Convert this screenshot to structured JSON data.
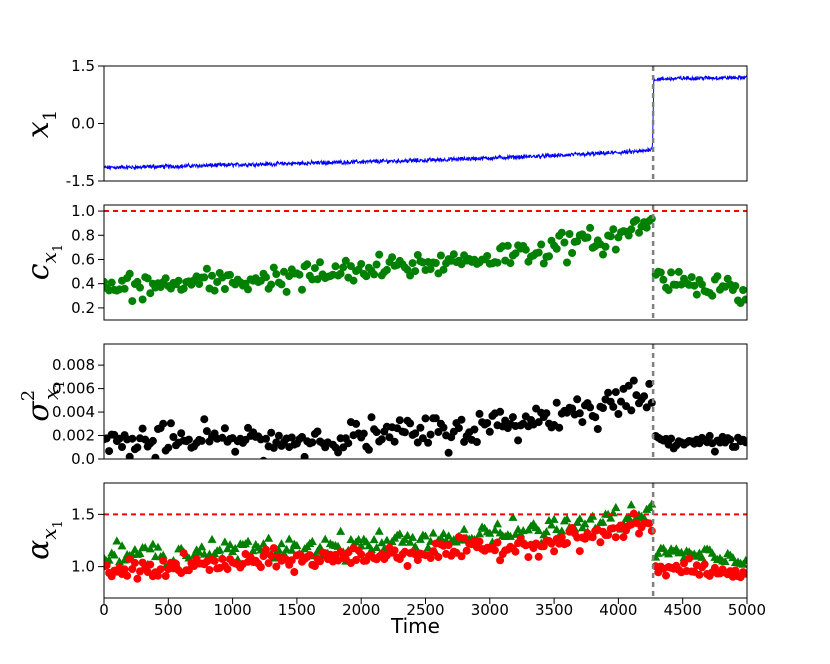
{
  "chart_data": [
    {
      "type": "line",
      "ylabel_main": "x",
      "ylabel_sub": "1",
      "ylabel_sup": "",
      "xlim": [
        0,
        5000
      ],
      "ylim": [
        -1.5,
        1.5
      ],
      "yticks": [
        "1.5",
        "0.0",
        "-1.5"
      ],
      "grid": false,
      "vline_x": 4270,
      "series": [
        {
          "color": "#0000ff",
          "x": [
            0,
            250,
            500,
            750,
            1000,
            1250,
            1500,
            1750,
            2000,
            2250,
            2500,
            2750,
            3000,
            3250,
            3500,
            3750,
            4000,
            4200,
            4265,
            4275,
            4500,
            4750,
            5000
          ],
          "y": [
            -1.15,
            -1.14,
            -1.12,
            -1.1,
            -1.08,
            -1.06,
            -1.04,
            -1.02,
            -1.0,
            -0.98,
            -0.96,
            -0.93,
            -0.9,
            -0.87,
            -0.84,
            -0.8,
            -0.76,
            -0.72,
            -0.65,
            1.15,
            1.18,
            1.19,
            1.2
          ],
          "noise": 0.045
        }
      ]
    },
    {
      "type": "scatter",
      "ylabel_main": "c",
      "ylabel_sub": "x",
      "ylabel_subsub": "1",
      "xlim": [
        0,
        5000
      ],
      "ylim": [
        0.1,
        1.05
      ],
      "yticks": [
        "1.0",
        "0.8",
        "0.6",
        "0.4",
        "0.2"
      ],
      "ytick_values": [
        1.0,
        0.8,
        0.6,
        0.4,
        0.2
      ],
      "grid": false,
      "hline_y": 1.0,
      "hline_color": "#ff0000",
      "vline_x": 4270,
      "series": [
        {
          "color": "#008000",
          "marker": "circle",
          "x_start": 0,
          "x_end": 4270,
          "x_step": 20,
          "trend": [
            [
              0,
              0.36
            ],
            [
              1000,
              0.42
            ],
            [
              2000,
              0.5
            ],
            [
              3000,
              0.62
            ],
            [
              3500,
              0.7
            ],
            [
              4000,
              0.78
            ],
            [
              4270,
              0.95
            ]
          ],
          "spread": 0.09
        },
        {
          "color": "#008000",
          "marker": "circle",
          "x_start": 4290,
          "x_end": 5000,
          "x_step": 20,
          "trend": [
            [
              4290,
              0.45
            ],
            [
              4700,
              0.4
            ],
            [
              5000,
              0.32
            ]
          ],
          "spread": 0.08
        }
      ]
    },
    {
      "type": "scatter",
      "ylabel_main": "σ",
      "ylabel_sup": "2",
      "ylabel_sub": "x",
      "ylabel_subsub": "1",
      "xlim": [
        0,
        5000
      ],
      "ylim": [
        0.0,
        0.0098
      ],
      "yticks": [
        "0.008",
        "0.006",
        "0.004",
        "0.002",
        "0.0"
      ],
      "ytick_values": [
        0.008,
        0.006,
        0.004,
        0.002,
        0.0
      ],
      "grid": false,
      "vline_x": 4270,
      "series": [
        {
          "color": "#000000",
          "marker": "circle",
          "x_start": 0,
          "x_end": 4270,
          "x_step": 20,
          "trend": [
            [
              0,
              0.0014
            ],
            [
              1500,
              0.0016
            ],
            [
              2500,
              0.0022
            ],
            [
              3000,
              0.0028
            ],
            [
              3400,
              0.0035
            ],
            [
              3800,
              0.0045
            ],
            [
              4270,
              0.0055
            ]
          ],
          "spread": 0.0012
        },
        {
          "color": "#000000",
          "marker": "circle",
          "x_start": 4290,
          "x_end": 5000,
          "x_step": 20,
          "trend": [
            [
              4290,
              0.0016
            ],
            [
              5000,
              0.0015
            ]
          ],
          "spread": 0.0004
        }
      ]
    },
    {
      "type": "scatter",
      "ylabel_main": "α",
      "ylabel_sub": "x",
      "ylabel_subsub": "1",
      "xlabel": "Time",
      "xlim": [
        0,
        5000
      ],
      "ylim": [
        0.7,
        1.8
      ],
      "xticks": [
        "0",
        "500",
        "1000",
        "1500",
        "2000",
        "2500",
        "3000",
        "3500",
        "4000",
        "4500",
        "5000"
      ],
      "xtick_values": [
        0,
        500,
        1000,
        1500,
        2000,
        2500,
        3000,
        3500,
        4000,
        4500,
        5000
      ],
      "yticks": [
        "1.5",
        "1.0"
      ],
      "ytick_values": [
        1.5,
        1.0
      ],
      "grid": false,
      "hline_y": 1.5,
      "hline_color": "#ff0000",
      "vline_x": 4270,
      "series": [
        {
          "color": "#008000",
          "marker": "triangle",
          "x_start": 0,
          "x_end": 4270,
          "x_step": 20,
          "trend": [
            [
              0,
              1.1
            ],
            [
              1000,
              1.15
            ],
            [
              2000,
              1.22
            ],
            [
              3000,
              1.3
            ],
            [
              3600,
              1.38
            ],
            [
              4270,
              1.52
            ]
          ],
          "spread": 0.09
        },
        {
          "color": "#ff0000",
          "marker": "circle",
          "x_start": 0,
          "x_end": 4270,
          "x_step": 20,
          "trend": [
            [
              0,
              0.95
            ],
            [
              1000,
              1.03
            ],
            [
              2000,
              1.1
            ],
            [
              3000,
              1.17
            ],
            [
              3600,
              1.25
            ],
            [
              4270,
              1.4
            ]
          ],
          "spread": 0.08
        },
        {
          "color": "#008000",
          "marker": "triangle",
          "x_start": 4290,
          "x_end": 5000,
          "x_step": 20,
          "trend": [
            [
              4290,
              1.15
            ],
            [
              5000,
              1.05
            ]
          ],
          "spread": 0.07
        },
        {
          "color": "#ff0000",
          "marker": "circle",
          "x_start": 4290,
          "x_end": 5000,
          "x_step": 20,
          "trend": [
            [
              4290,
              1.0
            ],
            [
              5000,
              0.92
            ]
          ],
          "spread": 0.06
        }
      ]
    }
  ]
}
